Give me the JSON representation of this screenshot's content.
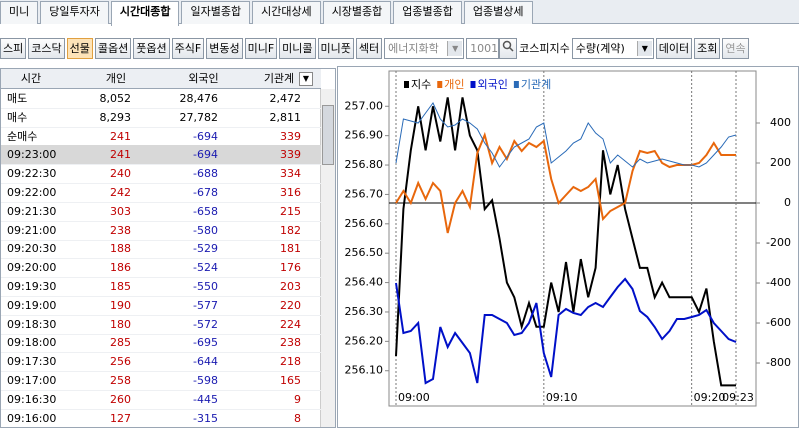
{
  "tabs": [
    "미니",
    "당일투자자",
    "시간대종합",
    "일자별종합",
    "시간대상세",
    "시장별종합",
    "업종별종합",
    "업종별상세"
  ],
  "toolbar": {
    "buttons": [
      "스피",
      "코스닥",
      "선물",
      "콜옵션",
      "풋옵션",
      "주식F",
      "변동성",
      "미니F",
      "미니콜",
      "미니풋",
      "섹터"
    ],
    "sector": "에너지화학",
    "code": "1001",
    "index_name": "코스피지수",
    "unit": "수량(계약)",
    "data": "데이터",
    "query": "조회",
    "continue": "연속"
  },
  "table": {
    "header": [
      "시간",
      "개인",
      "외국인",
      "기관계"
    ],
    "rows": [
      [
        "매도",
        "8,052",
        "28,476",
        "2,472"
      ],
      [
        "매수",
        "8,293",
        "27,782",
        "2,811"
      ],
      [
        "순매수",
        "241",
        "-694",
        "339"
      ],
      [
        "09:23:00",
        "241",
        "-694",
        "339"
      ],
      [
        "09:22:30",
        "240",
        "-688",
        "334"
      ],
      [
        "09:22:00",
        "242",
        "-678",
        "316"
      ],
      [
        "09:21:30",
        "303",
        "-658",
        "215"
      ],
      [
        "09:21:00",
        "238",
        "-580",
        "182"
      ],
      [
        "09:20:30",
        "188",
        "-529",
        "181"
      ],
      [
        "09:20:00",
        "186",
        "-524",
        "176"
      ],
      [
        "09:19:30",
        "185",
        "-550",
        "203"
      ],
      [
        "09:19:00",
        "190",
        "-577",
        "220"
      ],
      [
        "09:18:30",
        "180",
        "-572",
        "224"
      ],
      [
        "09:18:00",
        "285",
        "-695",
        "238"
      ],
      [
        "09:17:30",
        "256",
        "-644",
        "218"
      ],
      [
        "09:17:00",
        "258",
        "-598",
        "165"
      ],
      [
        "09:16:30",
        "260",
        "-445",
        "9"
      ],
      [
        "09:16:00",
        "127",
        "-315",
        "8"
      ]
    ]
  },
  "chart_data": {
    "type": "line",
    "categories": [
      "09:00",
      null,
      null,
      null,
      null,
      null,
      null,
      null,
      null,
      null,
      null,
      null,
      null,
      null,
      null,
      null,
      null,
      null,
      null,
      null,
      "09:10",
      null,
      null,
      null,
      null,
      null,
      null,
      null,
      null,
      null,
      null,
      null,
      null,
      null,
      null,
      null,
      null,
      null,
      null,
      null,
      "09:20",
      null,
      null,
      null,
      null,
      null,
      "09:23"
    ],
    "series": [
      {
        "name": "지수",
        "color": "#000000",
        "axis": "y",
        "values": [
          256.15,
          256.65,
          256.85,
          257.0,
          256.85,
          257.0,
          256.88,
          257.03,
          256.85,
          257.03,
          256.9,
          256.85,
          256.65,
          256.68,
          256.55,
          256.4,
          256.35,
          256.25,
          256.33,
          256.25,
          256.25,
          256.4,
          256.3,
          256.47,
          256.3,
          256.48,
          256.35,
          256.45,
          256.85,
          256.7,
          256.8,
          256.65,
          256.55,
          256.45,
          256.45,
          256.35,
          256.4,
          256.35,
          256.35,
          256.35,
          256.35,
          256.3,
          256.38,
          256.2,
          256.05,
          256.05,
          256.05
        ]
      },
      {
        "name": "개인",
        "color": "#e8670c",
        "axis": "y2",
        "values": [
          0,
          60,
          0,
          100,
          20,
          100,
          60,
          -150,
          0,
          60,
          -20,
          250,
          340,
          200,
          280,
          220,
          310,
          260,
          300,
          280,
          310,
          120,
          0,
          40,
          80,
          60,
          80,
          120,
          -80,
          -40,
          -20,
          0,
          160,
          260,
          250,
          260,
          200,
          180,
          190,
          190,
          190,
          200,
          240,
          300,
          240,
          240,
          240
        ]
      },
      {
        "name": "외국인",
        "color": "#0010c8",
        "axis": "y2",
        "values": [
          -400,
          -650,
          -640,
          -600,
          -900,
          -880,
          -620,
          -720,
          -650,
          -700,
          -750,
          -900,
          -560,
          -560,
          -580,
          -600,
          -660,
          -650,
          -600,
          -500,
          -750,
          -870,
          -560,
          -530,
          -550,
          -560,
          -520,
          -500,
          -520,
          -470,
          -420,
          -380,
          -430,
          -540,
          -570,
          -620,
          -680,
          -640,
          -580,
          -580,
          -570,
          -560,
          -535,
          -600,
          -640,
          -680,
          -695
        ]
      },
      {
        "name": "기관계",
        "color": "#2a6bb8",
        "axis": "y2",
        "values": [
          200,
          420,
          410,
          400,
          450,
          500,
          420,
          380,
          390,
          420,
          400,
          370,
          300,
          250,
          180,
          230,
          280,
          300,
          320,
          380,
          400,
          200,
          230,
          260,
          300,
          320,
          400,
          350,
          320,
          200,
          240,
          210,
          180,
          220,
          200,
          210,
          220,
          210,
          200,
          190,
          190,
          180,
          200,
          240,
          280,
          330,
          340
        ]
      }
    ],
    "ylim": [
      255.98,
      257.12
    ],
    "yticks": [
      {
        "value": 256.1,
        "label": "256.10"
      },
      {
        "value": 256.2,
        "label": "256.20"
      },
      {
        "value": 256.3,
        "label": "256.30"
      },
      {
        "value": 256.4,
        "label": "256.40"
      },
      {
        "value": 256.5,
        "label": "256.50"
      },
      {
        "value": 256.6,
        "label": "256.60"
      },
      {
        "value": 256.7,
        "label": "256.70"
      },
      {
        "value": 256.8,
        "label": "256.80"
      },
      {
        "value": 256.9,
        "label": "256.90"
      },
      {
        "value": 257.0,
        "label": "257.00"
      }
    ],
    "y2lim": [
      -1015,
      660
    ],
    "y2ticks": [
      -800,
      -600,
      -400,
      -200,
      0,
      200,
      400
    ]
  }
}
